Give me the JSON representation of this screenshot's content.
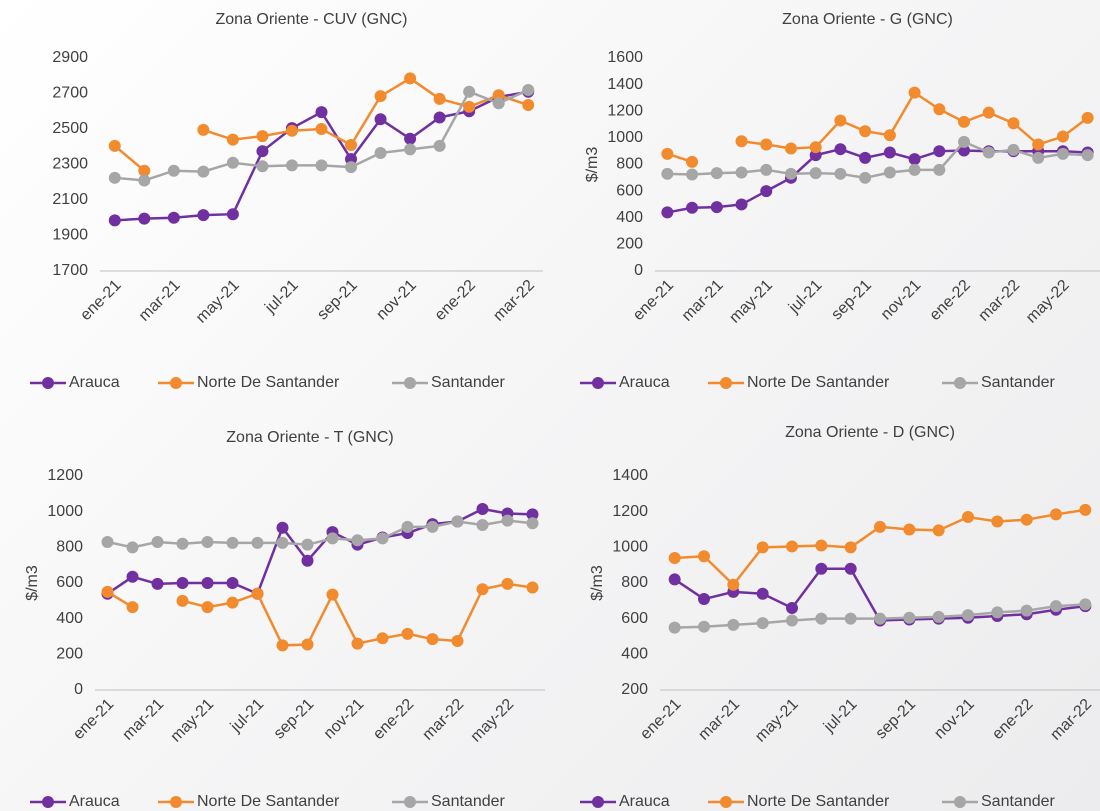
{
  "chart_data": [
    {
      "type": "line",
      "title": "Zona Oriente - CUV (GNC)",
      "categories": [
        "ene-21",
        null,
        "mar-21",
        null,
        "may-21",
        null,
        "jul-21",
        null,
        "sep-21",
        null,
        "nov-21",
        null,
        "ene-22",
        null,
        "mar-22"
      ],
      "ylim": [
        1700,
        2900
      ],
      "yticks": [
        1700,
        1900,
        2100,
        2300,
        2500,
        2700,
        2900
      ],
      "legend": "bottom",
      "series": [
        {
          "name": "Arauca",
          "color": "#7030a0",
          "values": [
            1985,
            1995,
            2000,
            2015,
            2020,
            2375,
            2505,
            2595,
            2330,
            2555,
            2445,
            2565,
            2600,
            2680,
            2710
          ]
        },
        {
          "name": "Norte De Santander",
          "color": "#f28a2e",
          "values": [
            2405,
            2265,
            null,
            2495,
            2440,
            2460,
            2490,
            2500,
            2410,
            2685,
            2785,
            2670,
            2625,
            2690,
            2635
          ]
        },
        {
          "name": "Santander",
          "color": "#a6a6a6",
          "values": [
            2225,
            2210,
            2265,
            2260,
            2310,
            2290,
            2295,
            2295,
            2285,
            2365,
            2385,
            2405,
            2710,
            2645,
            2720
          ]
        }
      ]
    },
    {
      "type": "line",
      "title": "Zona Oriente - G (GNC)",
      "y_label": "$/m3",
      "categories": [
        "ene-21",
        null,
        "mar-21",
        null,
        "may-21",
        null,
        "jul-21",
        null,
        "sep-21",
        null,
        "nov-21",
        null,
        "ene-22",
        null,
        "mar-22",
        null,
        "may-22",
        null
      ],
      "ylim": [
        0,
        1600
      ],
      "yticks": [
        0,
        200,
        400,
        600,
        800,
        1000,
        1200,
        1400,
        1600
      ],
      "legend": "bottom",
      "series": [
        {
          "name": "Arauca",
          "color": "#7030a0",
          "values": [
            440,
            475,
            480,
            500,
            600,
            700,
            870,
            915,
            850,
            890,
            840,
            900,
            905,
            900,
            900,
            900,
            900,
            890
          ]
        },
        {
          "name": "Norte De Santander",
          "color": "#f28a2e",
          "values": [
            880,
            820,
            null,
            975,
            950,
            920,
            930,
            1130,
            1050,
            1020,
            1340,
            1215,
            1120,
            1190,
            1110,
            950,
            1010,
            1150
          ]
        },
        {
          "name": "Santander",
          "color": "#a6a6a6",
          "values": [
            730,
            725,
            735,
            740,
            760,
            730,
            735,
            730,
            700,
            740,
            760,
            760,
            970,
            890,
            910,
            850,
            880,
            870
          ]
        }
      ]
    },
    {
      "type": "line",
      "title": "Zona Oriente - T (GNC)",
      "y_label": "$/m3",
      "categories": [
        "ene-21",
        null,
        "mar-21",
        null,
        "may-21",
        null,
        "jul-21",
        null,
        "sep-21",
        null,
        "nov-21",
        null,
        "ene-22",
        null,
        "mar-22",
        null,
        "may-22",
        null
      ],
      "ylim": [
        0,
        1200
      ],
      "yticks": [
        0,
        200,
        400,
        600,
        800,
        1000,
        1200
      ],
      "legend": "bottom",
      "series": [
        {
          "name": "Arauca",
          "color": "#7030a0",
          "values": [
            540,
            635,
            595,
            600,
            600,
            600,
            540,
            910,
            725,
            885,
            815,
            855,
            880,
            930,
            945,
            1015,
            990,
            985
          ]
        },
        {
          "name": "Norte De Santander",
          "color": "#f28a2e",
          "values": [
            550,
            465,
            null,
            500,
            465,
            490,
            540,
            250,
            255,
            535,
            260,
            290,
            315,
            285,
            275,
            565,
            595,
            575
          ]
        },
        {
          "name": "Santander",
          "color": "#a6a6a6",
          "values": [
            830,
            800,
            830,
            820,
            830,
            825,
            825,
            825,
            815,
            850,
            840,
            850,
            915,
            915,
            945,
            925,
            950,
            935
          ]
        }
      ]
    },
    {
      "type": "line",
      "title": "Zona Oriente - D (GNC)",
      "y_label": "$/m3",
      "categories": [
        "ene-21",
        null,
        "mar-21",
        null,
        "may-21",
        null,
        "jul-21",
        null,
        "sep-21",
        null,
        "nov-21",
        null,
        "ene-22",
        null,
        "mar-22"
      ],
      "ylim": [
        200,
        1400
      ],
      "yticks": [
        200,
        400,
        600,
        800,
        1000,
        1200,
        1400
      ],
      "legend": "bottom",
      "series": [
        {
          "name": "Arauca",
          "color": "#7030a0",
          "values": [
            820,
            710,
            750,
            740,
            660,
            880,
            880,
            590,
            595,
            600,
            605,
            615,
            625,
            650,
            670
          ]
        },
        {
          "name": "Norte De Santander",
          "color": "#f28a2e",
          "values": [
            940,
            950,
            790,
            1000,
            1005,
            1010,
            1000,
            1115,
            1100,
            1095,
            1170,
            1145,
            1155,
            1185,
            1210
          ]
        },
        {
          "name": "Santander",
          "color": "#a6a6a6",
          "values": [
            550,
            555,
            565,
            575,
            590,
            600,
            600,
            600,
            605,
            610,
            620,
            635,
            645,
            670,
            680
          ]
        }
      ]
    }
  ]
}
